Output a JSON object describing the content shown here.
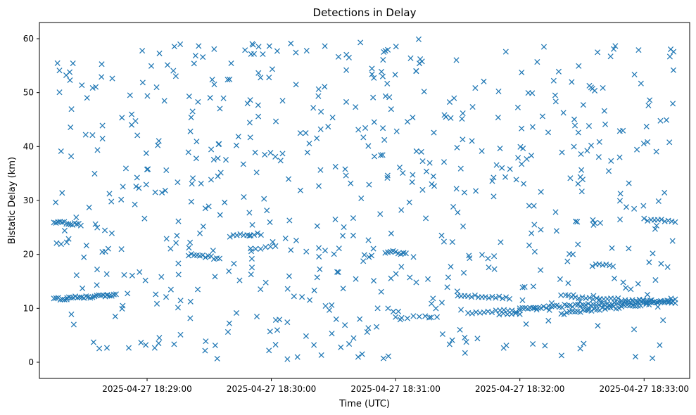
{
  "chart_data": {
    "type": "scatter",
    "title": "Detections in Delay",
    "xlabel": "Time (UTC)",
    "ylabel": "Bistatic Delay (km)",
    "marker": "x",
    "color": "#1f77b4",
    "grid": false,
    "legend": "none",
    "x_start": "2025-04-27 18:28:15",
    "x_end": "2025-04-27 18:33:15",
    "xlim": [
      "2025-04-27 18:28:08",
      "2025-04-27 18:33:22"
    ],
    "ylim": [
      -3,
      63
    ],
    "x_ticks": [
      {
        "value": "2025-04-27 18:29:00",
        "label": "2025-04-27 18:29:00"
      },
      {
        "value": "2025-04-27 18:30:00",
        "label": "2025-04-27 18:30:00"
      },
      {
        "value": "2025-04-27 18:31:00",
        "label": "2025-04-27 18:31:00"
      },
      {
        "value": "2025-04-27 18:32:00",
        "label": "2025-04-27 18:32:00"
      },
      {
        "value": "2025-04-27 18:33:00",
        "label": "2025-04-27 18:33:00"
      }
    ],
    "y_ticks": [
      0,
      10,
      20,
      30,
      40,
      50,
      60
    ],
    "tracks": [
      {
        "from": [
          "2025-04-27 18:28:15",
          26.0
        ],
        "to": [
          "2025-04-27 18:28:28",
          25.5
        ],
        "n": 14
      },
      {
        "from": [
          "2025-04-27 18:28:15",
          11.7
        ],
        "to": [
          "2025-04-27 18:28:45",
          12.5
        ],
        "n": 30
      },
      {
        "from": [
          "2025-04-27 18:29:20",
          20.0
        ],
        "to": [
          "2025-04-27 18:29:35",
          19.2
        ],
        "n": 12
      },
      {
        "from": [
          "2025-04-27 18:29:40",
          23.5
        ],
        "to": [
          "2025-04-27 18:29:55",
          23.8
        ],
        "n": 10
      },
      {
        "from": [
          "2025-04-27 18:29:50",
          21.0
        ],
        "to": [
          "2025-04-27 18:30:02",
          21.5
        ],
        "n": 6
      },
      {
        "from": [
          "2025-04-27 18:30:55",
          20.5
        ],
        "to": [
          "2025-04-27 18:31:05",
          20.2
        ],
        "n": 9
      },
      {
        "from": [
          "2025-04-27 18:31:00",
          8.3
        ],
        "to": [
          "2025-04-27 18:31:20",
          8.5
        ],
        "n": 8
      },
      {
        "from": [
          "2025-04-27 18:31:30",
          12.5
        ],
        "to": [
          "2025-04-27 18:31:55",
          11.9
        ],
        "n": 16
      },
      {
        "from": [
          "2025-04-27 18:31:35",
          9.2
        ],
        "to": [
          "2025-04-27 18:32:00",
          9.6
        ],
        "n": 14
      },
      {
        "from": [
          "2025-04-27 18:31:50",
          8.8
        ],
        "to": [
          "2025-04-27 18:32:00",
          9.1
        ],
        "n": 6
      },
      {
        "from": [
          "2025-04-27 18:32:00",
          10.0
        ],
        "to": [
          "2025-04-27 18:33:15",
          11.5
        ],
        "n": 60
      },
      {
        "from": [
          "2025-04-27 18:32:20",
          9.0
        ],
        "to": [
          "2025-04-27 18:33:05",
          11.0
        ],
        "n": 35
      },
      {
        "from": [
          "2025-04-27 18:32:25",
          12.0
        ],
        "to": [
          "2025-04-27 18:33:15",
          11.2
        ],
        "n": 30
      },
      {
        "from": [
          "2025-04-27 18:32:35",
          18.0
        ],
        "to": [
          "2025-04-27 18:32:45",
          17.9
        ],
        "n": 7
      },
      {
        "from": [
          "2025-04-27 18:33:00",
          26.5
        ],
        "to": [
          "2025-04-27 18:33:15",
          26.0
        ],
        "n": 10
      }
    ],
    "scatter_points": 620
  }
}
